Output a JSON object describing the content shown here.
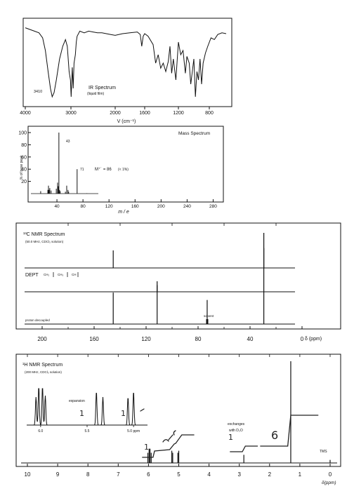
{
  "chart_data": [
    {
      "type": "line",
      "title": "IR Spectrum",
      "subtitle": "(liquid film)",
      "xlabel": "V (cm⁻¹)",
      "xlim": [
        4000,
        600
      ],
      "x_ticks": [
        "4000",
        "3000",
        "2000",
        "1600",
        "1200",
        "800"
      ],
      "annotations": [
        "3410"
      ],
      "series": [
        {
          "x": [
            4000,
            3900,
            3800,
            3700,
            3620,
            3560,
            3500,
            3450,
            3410,
            3370,
            3320,
            3250,
            3180,
            3120,
            3080,
            3040,
            3010,
            2995,
            2970,
            2950,
            2930,
            2900,
            2880,
            2860,
            2800,
            2700,
            2600,
            2500,
            2400,
            2300,
            2200,
            2100,
            2000,
            1900,
            1800,
            1700,
            1660,
            1640,
            1620,
            1600,
            1560,
            1500,
            1470,
            1440,
            1410,
            1380,
            1350,
            1320,
            1300,
            1280,
            1260,
            1230,
            1200,
            1170,
            1140,
            1110,
            1090,
            1060,
            1040,
            1020,
            1000,
            980,
            960,
            940,
            920,
            900,
            880,
            850,
            820,
            780,
            740,
            700,
            650,
            600
          ],
          "y": [
            92,
            90,
            88,
            86,
            80,
            65,
            40,
            20,
            10,
            15,
            30,
            55,
            70,
            78,
            70,
            40,
            30,
            10,
            45,
            20,
            50,
            60,
            75,
            82,
            88,
            86,
            88,
            87,
            86,
            86,
            85,
            84,
            83,
            85,
            86,
            87,
            84,
            70,
            82,
            85,
            82,
            72,
            50,
            60,
            44,
            50,
            40,
            52,
            70,
            38,
            55,
            30,
            75,
            60,
            65,
            38,
            58,
            50,
            25,
            40,
            55,
            10,
            40,
            30,
            55,
            25,
            50,
            62,
            70,
            80,
            78,
            84,
            86,
            85
          ]
        }
      ]
    },
    {
      "type": "bar",
      "title": "Mass Spectrum",
      "xlabel": "m / e",
      "ylabel": "% of base peak",
      "xlim": [
        0,
        300
      ],
      "ylim": [
        0,
        100
      ],
      "x_ticks": [
        "40",
        "80",
        "120",
        "160",
        "200",
        "240",
        "280"
      ],
      "y_ticks": [
        "20",
        "40",
        "60",
        "80",
        "100"
      ],
      "annotations": [
        "43",
        "71",
        "M⁺˙ = 86",
        "(< 1%)"
      ],
      "x": [
        15,
        26,
        27,
        28,
        29,
        31,
        39,
        41,
        42,
        43,
        44,
        45,
        53,
        55,
        57,
        58,
        71,
        86
      ],
      "values": [
        4,
        6,
        13,
        6,
        9,
        5,
        8,
        18,
        12,
        100,
        6,
        4,
        3,
        13,
        6,
        3,
        40,
        0.5
      ]
    },
    {
      "type": "bar",
      "title": "¹³C NMR Spectrum",
      "subtitle": "(50.0 MHz, CDCl₃ solution)",
      "xlabel": "δ (ppm)",
      "xlim": [
        220,
        0
      ],
      "x_ticks": [
        "200",
        "160",
        "120",
        "80",
        "40",
        "0"
      ],
      "panels": [
        {
          "name": "CH₂",
          "x": [
            145.3,
            29.4
          ],
          "values": [
            50,
            100
          ]
        },
        {
          "name": "CH",
          "x": [
            111.5
          ],
          "values": [
            50
          ]
        },
        {
          "name": "proton decoupled",
          "x": [
            145.3,
            111.5,
            73.0,
            29.4
          ],
          "values": [
            34,
            42,
            26,
            82
          ]
        }
      ],
      "annotations": [
        "DEPT",
        "CH₂",
        "CH₃",
        "CH",
        "proton decoupled",
        "solvent"
      ]
    },
    {
      "type": "bar",
      "title": "¹H NMR Spectrum",
      "subtitle": "(200 MHz, CDCl₃ solution)",
      "xlabel": "δ(ppm)",
      "xlim": [
        10.5,
        -0.5
      ],
      "x_ticks": [
        "10",
        "9",
        "8",
        "7",
        "6",
        "5",
        "4",
        "3",
        "2",
        "1",
        "0"
      ],
      "inset_x_ticks": [
        "6.0",
        "5.5",
        "5.0 ppm"
      ],
      "x": [
        6.02,
        5.98,
        5.95,
        5.91,
        5.23,
        5.2,
        5.03,
        5.0,
        2.85,
        1.3,
        0.0
      ],
      "values": [
        0.1,
        0.14,
        0.14,
        0.1,
        0.12,
        0.1,
        0.1,
        0.12,
        0.08,
        1.0,
        0.03
      ],
      "integrals": [
        "1",
        "1",
        "1",
        "1",
        "6"
      ],
      "annotations": [
        "expansion",
        "exchanges",
        "with D₂O",
        "TMS"
      ]
    }
  ]
}
